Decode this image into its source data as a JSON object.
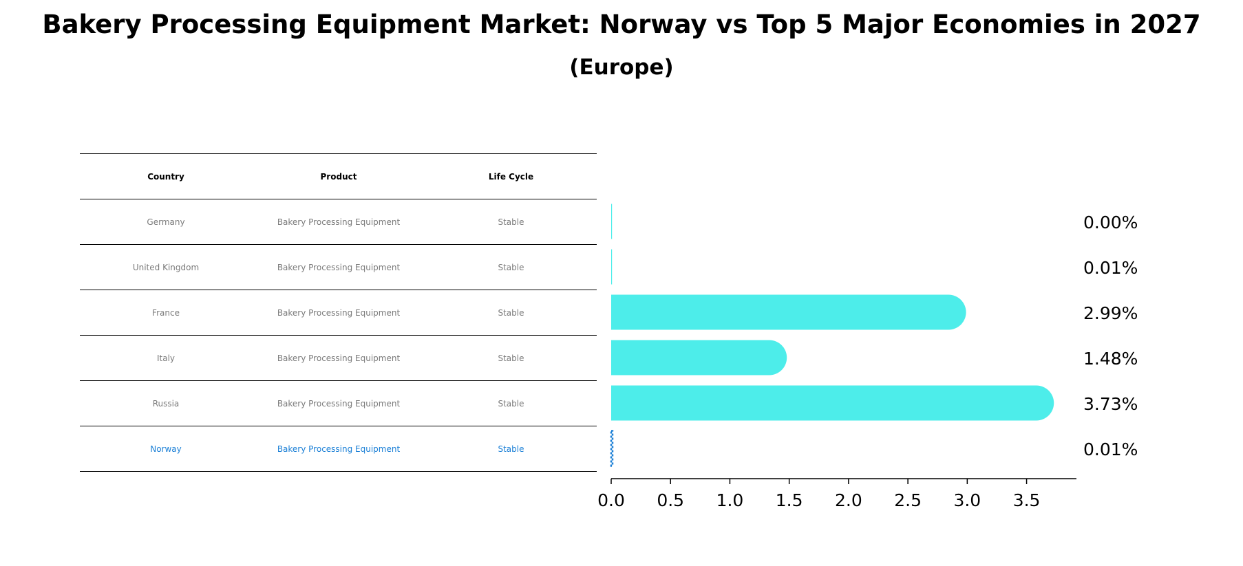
{
  "chart_data": {
    "type": "bar",
    "orientation": "horizontal",
    "title": "Bakery Processing Equipment Market: Norway vs Top 5 Major Economies in 2027",
    "subtitle": "(Europe)",
    "categories": [
      "Germany",
      "United Kingdom",
      "France",
      "Italy",
      "Russia",
      "Norway"
    ],
    "values": [
      0.0,
      0.01,
      2.99,
      1.48,
      3.73,
      0.01
    ],
    "value_labels": [
      "0.00%",
      "0.01%",
      "2.99%",
      "1.48%",
      "3.73%",
      "0.01%"
    ],
    "xlim": [
      0,
      3.92
    ],
    "xticks": [
      "0.0",
      "0.5",
      "1.0",
      "1.5",
      "2.0",
      "2.5",
      "3.0",
      "3.5"
    ],
    "highlight": "Norway",
    "colors": {
      "bar": "#4dedea",
      "highlight": "#1a7fd6",
      "muted_text": "#7a7a7a"
    }
  },
  "table": {
    "headers": [
      "Country",
      "Product",
      "Life Cycle"
    ],
    "rows": [
      [
        "Germany",
        "Bakery Processing Equipment",
        "Stable"
      ],
      [
        "United Kingdom",
        "Bakery Processing Equipment",
        "Stable"
      ],
      [
        "France",
        "Bakery Processing Equipment",
        "Stable"
      ],
      [
        "Italy",
        "Bakery Processing Equipment",
        "Stable"
      ],
      [
        "Russia",
        "Bakery Processing Equipment",
        "Stable"
      ],
      [
        "Norway",
        "Bakery Processing Equipment",
        "Stable"
      ]
    ]
  }
}
